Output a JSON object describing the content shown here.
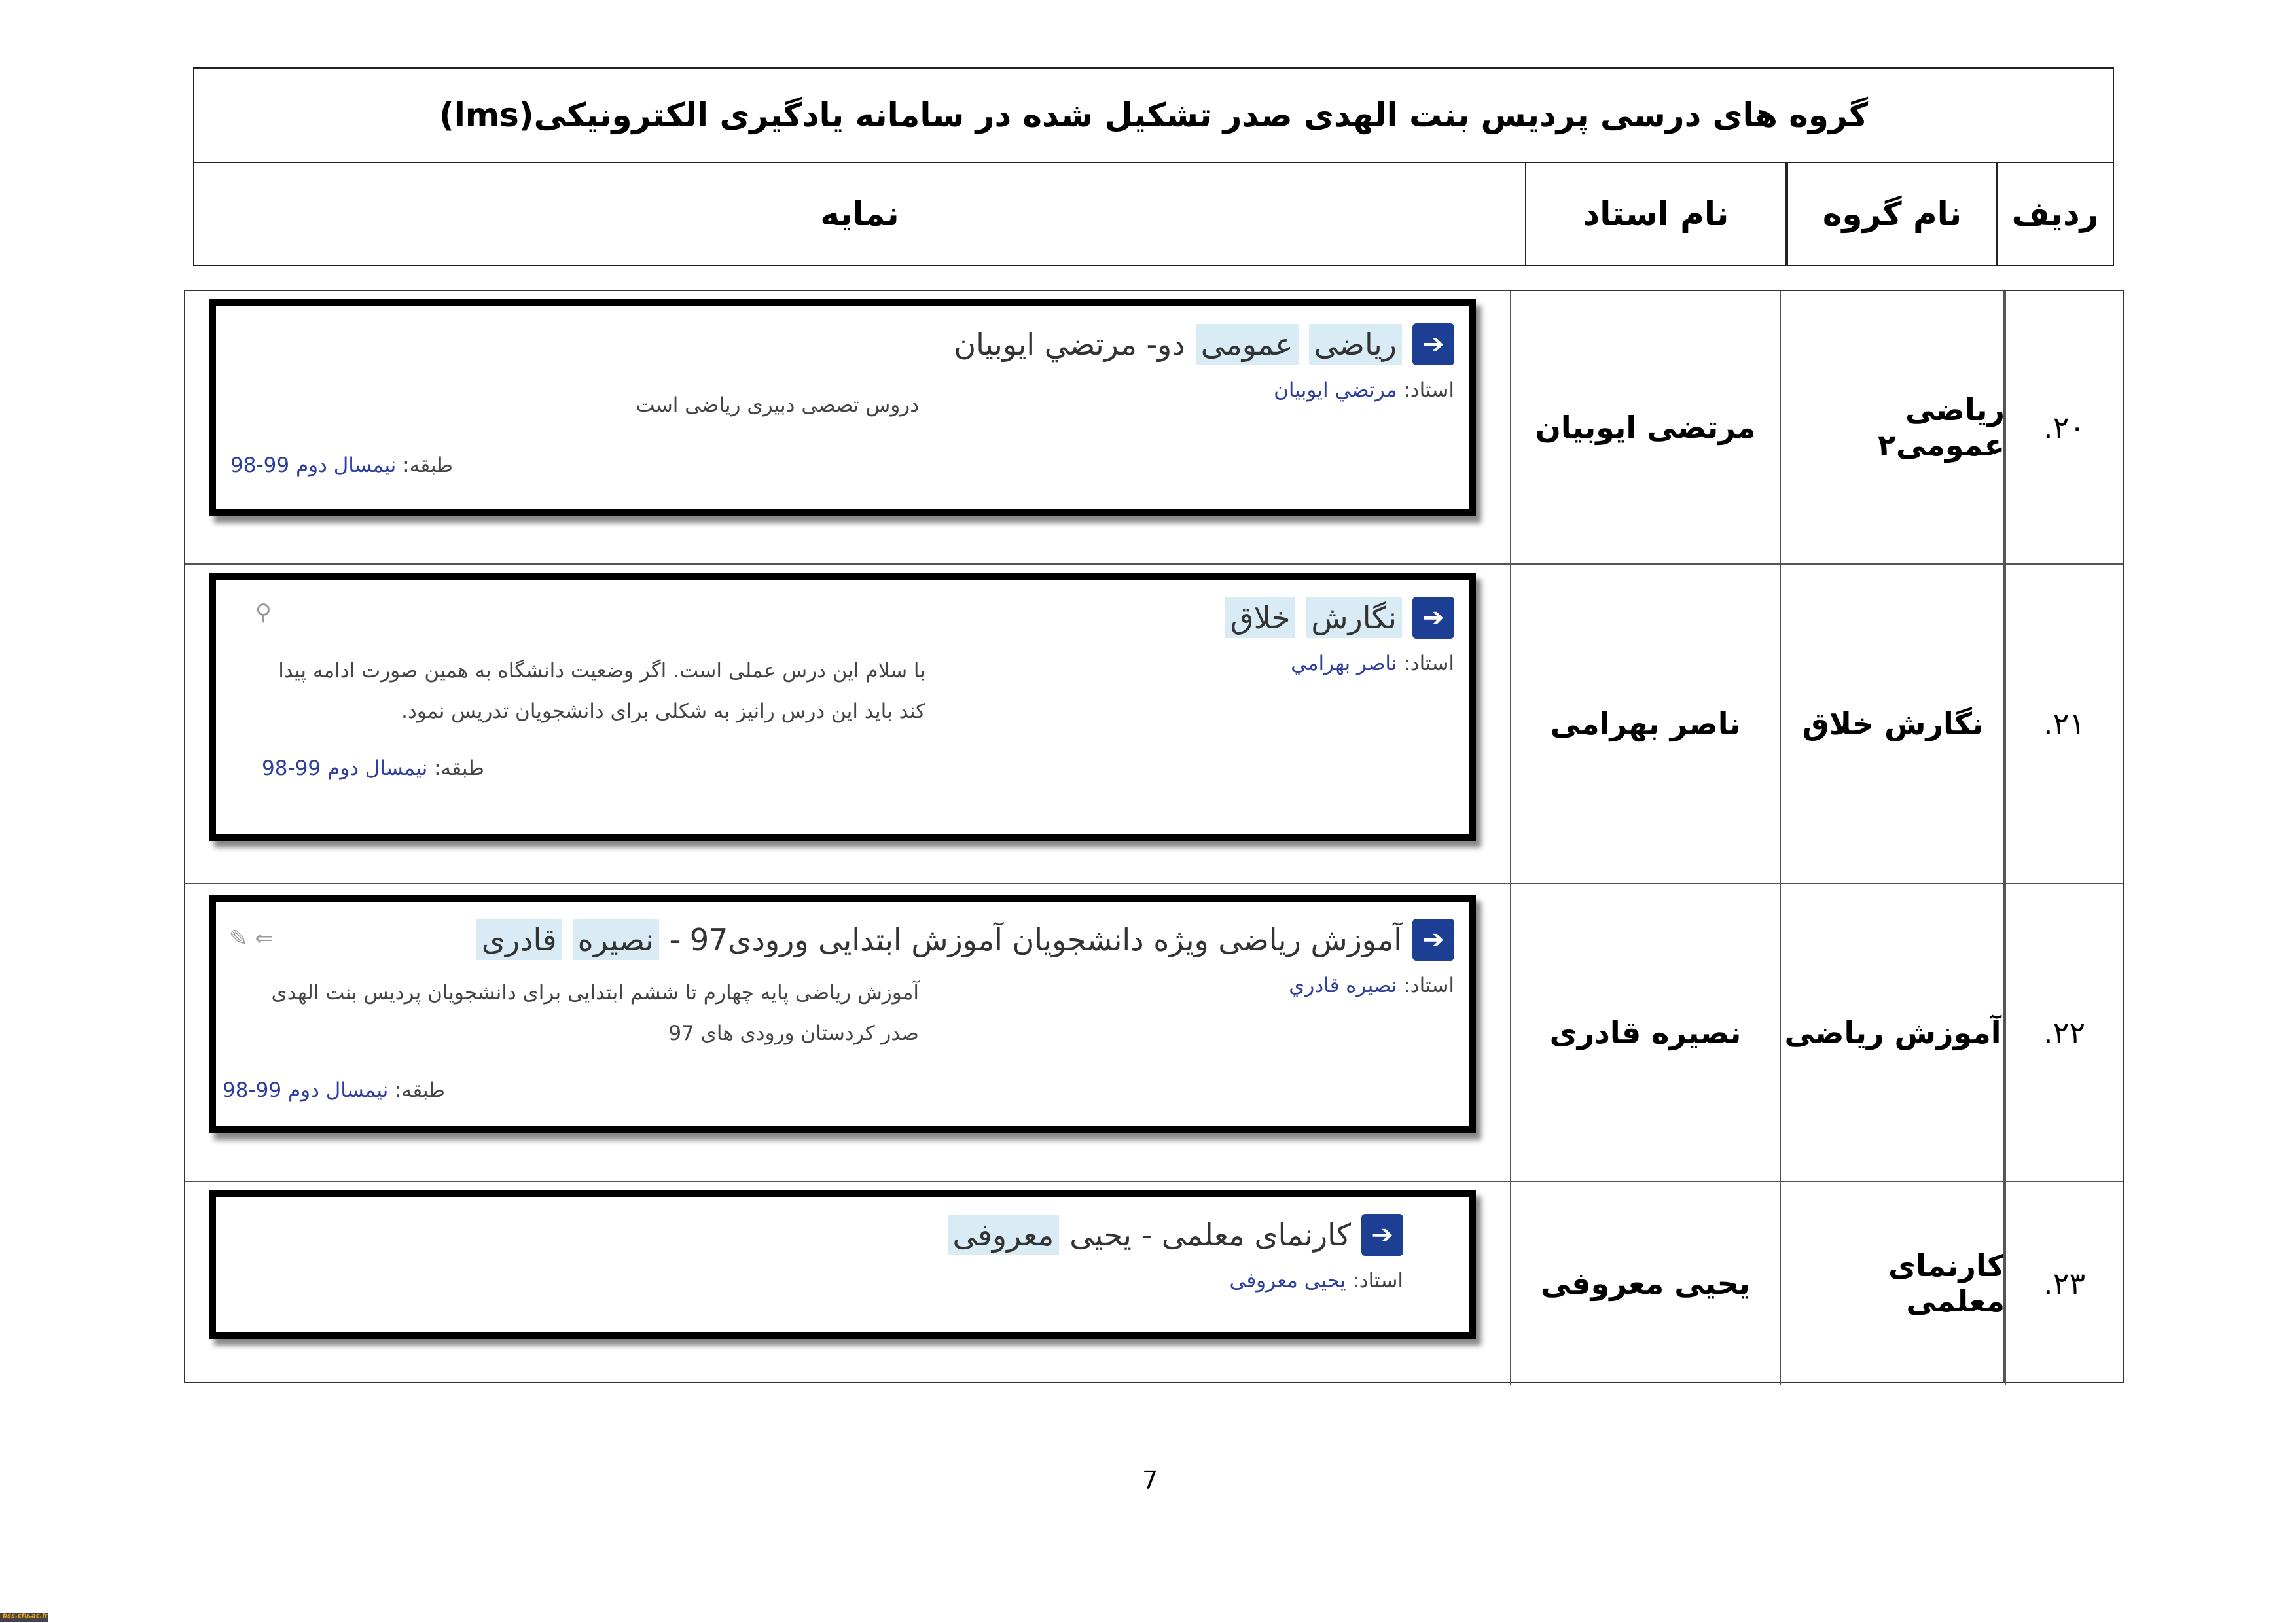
{
  "header": {
    "title": "گروه های درسی پردیس بنت الهدی صدر تشکیل شده در سامانه یادگیری الکترونیکی(lms)",
    "columns": {
      "row": "ردیف",
      "group": "نام گروه",
      "teacher": "نام استاد",
      "view": "نمایه"
    }
  },
  "rows": [
    {
      "num": "۲۰.",
      "group": "ریاضی عمومی۲",
      "teacher": "مرتضی ایوبیان",
      "card": {
        "title_hl": [
          "رياضی",
          "عمومی"
        ],
        "title_rest": "دو- مرتضي ايوبيان",
        "teacher_label": "استاد:",
        "teacher_name": "مرتضي ايوبيان",
        "desc": "دروس تصصی دبیری ریاضی است",
        "term_label": "طبقه:",
        "term": "نیمسال دوم 99-98"
      }
    },
    {
      "num": "۲۱.",
      "group": "نگارش خلاق",
      "teacher": "ناصر بهرامی",
      "card": {
        "title_hl": [
          "نگارش",
          "خلاق"
        ],
        "title_rest": "",
        "teacher_label": "استاد:",
        "teacher_name": "ناصر بهرامي",
        "desc": "با سلام این درس عملی است. اگر وضعیت دانشگاه به همین صورت ادامه پیدا کند باید این درس رانیز به شکلی برای دانشجویان تدریس نمود.",
        "term_label": "طبقه:",
        "term": "نیمسال دوم 99-98"
      }
    },
    {
      "num": "۲۲.",
      "group": "آموزش ریاضی",
      "teacher": "نصیره قادری",
      "card": {
        "title_hl": [
          "نصيره",
          "قادری"
        ],
        "title_rest": "آموزش رياضی ويژه دانشجويان آموزش ابتدايی ورودی97 -",
        "teacher_label": "استاد:",
        "teacher_name": "نصيره قادري",
        "desc": "آموزش ریاضی پایه چهارم تا ششم ابتدایی برای دانشجویان پردیس بنت الهدی صدر کردستان ورودی های 97",
        "term_label": "طبقه:",
        "term": "نیمسال دوم 99-98"
      }
    },
    {
      "num": "۲۳.",
      "group": "کارنمای معلمی",
      "teacher": "یحیی معروفی",
      "card": {
        "title_hl": [
          "معروفی"
        ],
        "title_rest": "کارنمای معلمی - يحيی",
        "teacher_label": "استاد:",
        "teacher_name": "يحيی معروفی"
      }
    }
  ],
  "page_number": "7",
  "watermark": "bss.cfu.ac.ir"
}
